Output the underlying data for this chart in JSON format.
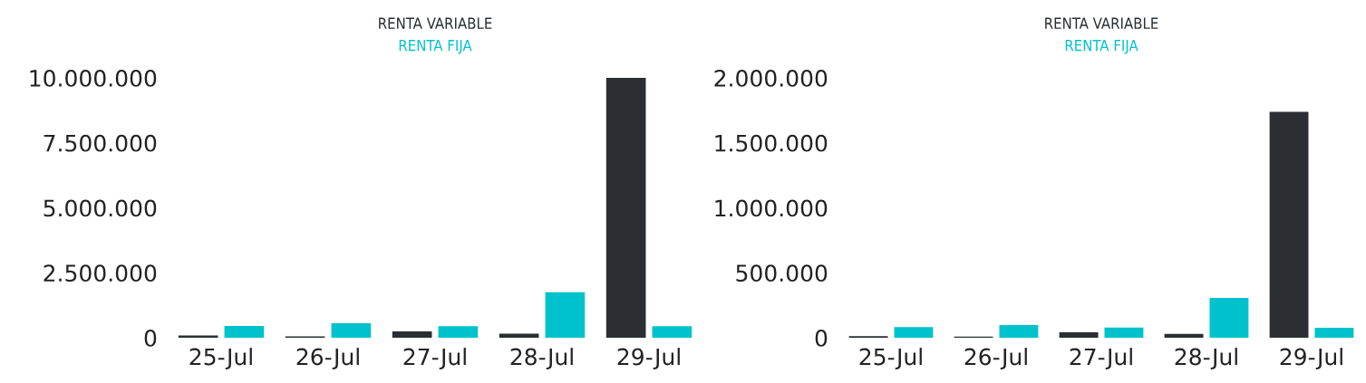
{
  "chart_data": [
    {
      "type": "bar",
      "categories": [
        "25-Jul",
        "26-Jul",
        "27-Jul",
        "28-Jul",
        "29-Jul"
      ],
      "legend": "top",
      "series": [
        {
          "name": "RENTA VARIABLE",
          "color": "#2b2f33",
          "values": [
            90000,
            50000,
            240000,
            160000,
            10000000
          ]
        },
        {
          "name": "RENTA FIJA",
          "color": "#00c2cc",
          "values": [
            450000,
            560000,
            440000,
            1750000,
            440000
          ]
        }
      ],
      "ylim": [
        0,
        10000000
      ],
      "yticks": [
        0,
        {
          "value": 2500000,
          "label": "2.500.000"
        },
        {
          "value": 5000000,
          "label": "5.000.000"
        },
        {
          "value": 7500000,
          "label": "7.500.000"
        },
        {
          "value": 10000000,
          "label": "10.000.000"
        }
      ],
      "grid": false
    },
    {
      "type": "bar",
      "categories": [
        "25-Jul",
        "26-Jul",
        "27-Jul",
        "28-Jul",
        "29-Jul"
      ],
      "legend": "top",
      "series": [
        {
          "name": "RENTA VARIABLE",
          "color": "#2b2f33",
          "values": [
            13000,
            8000,
            42000,
            29000,
            1738000
          ]
        },
        {
          "name": "RENTA FIJA",
          "color": "#00c2cc",
          "values": [
            82000,
            97000,
            79000,
            306000,
            76000
          ]
        }
      ],
      "ylim": [
        0,
        2000000
      ],
      "yticks": [
        0,
        {
          "value": 500000,
          "label": "500.000"
        },
        {
          "value": 1000000,
          "label": "1.000.000"
        },
        {
          "value": 1500000,
          "label": "1.500.000"
        },
        {
          "value": 2000000,
          "label": "2.000.000"
        }
      ],
      "grid": false
    }
  ]
}
